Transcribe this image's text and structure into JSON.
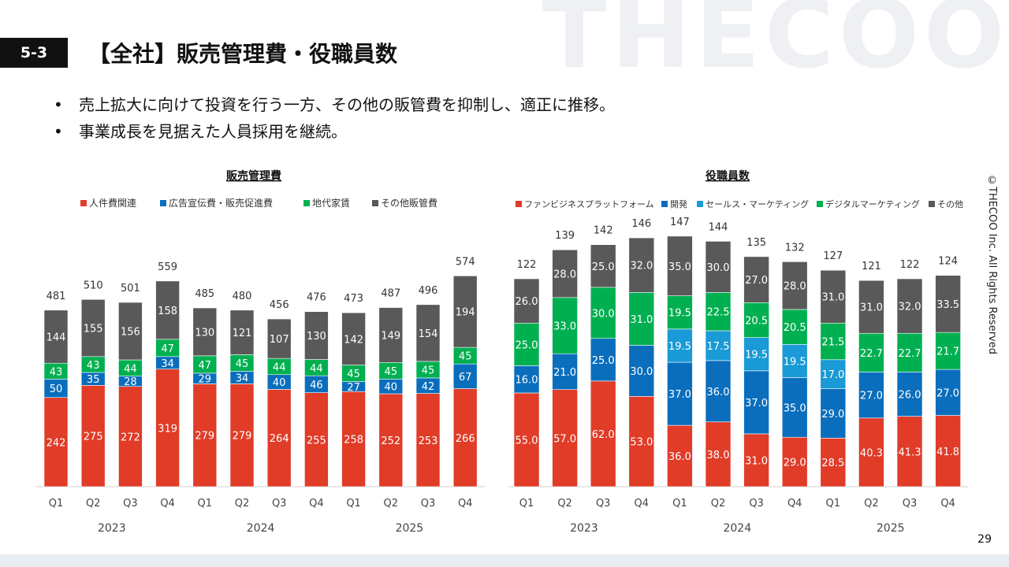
{
  "watermark": "THECOO",
  "section_number": "5-3",
  "title": "【全社】販売管理費・役職員数",
  "bullets": [
    "売上拡大に向けて投資を行う一方、その他の販管費を抑制し、適正に推移。",
    "事業成長を見据えた人員採用を継続。"
  ],
  "copyright": "©THECOO Inc. All Rights Reserved",
  "page_number": "29",
  "chart_data": [
    {
      "type": "bar",
      "stacked": true,
      "title": "販売管理費",
      "legend": "top",
      "categories": [
        "Q1",
        "Q2",
        "Q3",
        "Q4",
        "Q1",
        "Q2",
        "Q3",
        "Q4",
        "Q1",
        "Q2",
        "Q3",
        "Q4"
      ],
      "years": [
        "2023",
        "2024",
        "2025"
      ],
      "totals": [
        481,
        510,
        501,
        559,
        485,
        480,
        456,
        476,
        473,
        487,
        496,
        574
      ],
      "series": [
        {
          "name": "人件費関連",
          "color": "#e03c28",
          "values": [
            242,
            275,
            272,
            319,
            279,
            279,
            264,
            255,
            258,
            252,
            253,
            266
          ]
        },
        {
          "name": "広告宣伝費・販売促進費",
          "color": "#0a6ebd",
          "values": [
            50,
            35,
            28,
            34,
            29,
            34,
            40,
            46,
            27,
            40,
            42,
            67
          ]
        },
        {
          "name": "地代家賃",
          "color": "#00b050",
          "values": [
            43,
            43,
            44,
            47,
            47,
            45,
            44,
            44,
            45,
            45,
            45,
            45
          ]
        },
        {
          "name": "その他販管費",
          "color": "#595959",
          "values": [
            144,
            155,
            156,
            158,
            130,
            121,
            107,
            130,
            142,
            149,
            154,
            194
          ]
        }
      ]
    },
    {
      "type": "bar",
      "stacked": true,
      "title": "役職員数",
      "legend": "top",
      "categories": [
        "Q1",
        "Q2",
        "Q3",
        "Q4",
        "Q1",
        "Q2",
        "Q3",
        "Q4",
        "Q1",
        "Q2",
        "Q3",
        "Q4"
      ],
      "years": [
        "2023",
        "2024",
        "2025"
      ],
      "totals": [
        122,
        139,
        142,
        146,
        147,
        144,
        135,
        132,
        127,
        121,
        122,
        124
      ],
      "series": [
        {
          "name": "ファンビジネスプラットフォーム",
          "color": "#e03c28",
          "values": [
            "55.0",
            "57.0",
            "62.0",
            "53.0",
            "36.0",
            "38.0",
            "31.0",
            "29.0",
            "28.5",
            "40.3",
            "41.3",
            "41.8"
          ]
        },
        {
          "name": "開発",
          "color": "#0a6ebd",
          "values": [
            "16.0",
            "21.0",
            "25.0",
            "30.0",
            "37.0",
            "36.0",
            "37.0",
            "35.0",
            "29.0",
            "27.0",
            "26.0",
            "27.0"
          ]
        },
        {
          "name": "セールス・マーケティング",
          "color": "#1a9ad6",
          "values": [
            null,
            null,
            null,
            null,
            "19.5",
            "17.5",
            "19.5",
            "19.5",
            "17.0",
            null,
            null,
            null
          ]
        },
        {
          "name": "デジタルマーケティング",
          "color": "#00b050",
          "values": [
            "25.0",
            "33.0",
            "30.0",
            "31.0",
            "19.5",
            "22.5",
            "20.5",
            "20.5",
            "21.5",
            "22.7",
            "22.7",
            "21.7"
          ]
        },
        {
          "name": "その他",
          "color": "#595959",
          "values": [
            "26.0",
            "28.0",
            "25.0",
            "32.0",
            "35.0",
            "30.0",
            "27.0",
            "28.0",
            "31.0",
            "31.0",
            "32.0",
            "33.5"
          ]
        }
      ]
    }
  ]
}
